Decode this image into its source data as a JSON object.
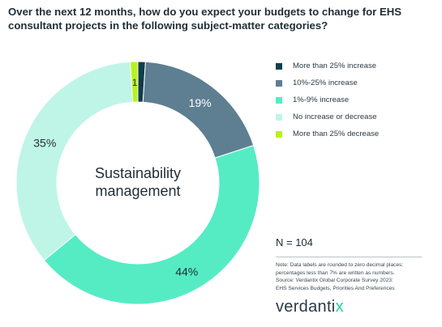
{
  "header": {
    "title": "Over the next 12 months, how do you expect your budgets to change for EHS consultant projects in the following subject-matter categories?"
  },
  "chart_data": {
    "type": "pie",
    "variant": "donut",
    "center_label": [
      "Sustainability",
      "management"
    ],
    "categories": [
      "More than 25% increase",
      "10%-25% increase",
      "1%-9% increase",
      "No increase or decrease",
      "More than 25% decrease"
    ],
    "values": [
      1,
      19,
      44,
      35,
      1
    ],
    "data_labels": [
      "1",
      "19%",
      "44%",
      "35%",
      "1"
    ],
    "colors": [
      "#0f3f4c",
      "#5d7f91",
      "#55ecc4",
      "#bff5e6",
      "#b8f21c"
    ],
    "legend_position": "right"
  },
  "panel": {
    "n_label": "N = 104",
    "note_lines": [
      "Note: Data labels are rounded to zero decimal places;",
      "percentages less than 7% are written as numbers.",
      "Source: Verdantix Global Corporate Survey 2023:",
      "EHS Services Budgets, Priorities And Preferences"
    ],
    "brand_pre": "verdanti",
    "brand_x": "x"
  }
}
